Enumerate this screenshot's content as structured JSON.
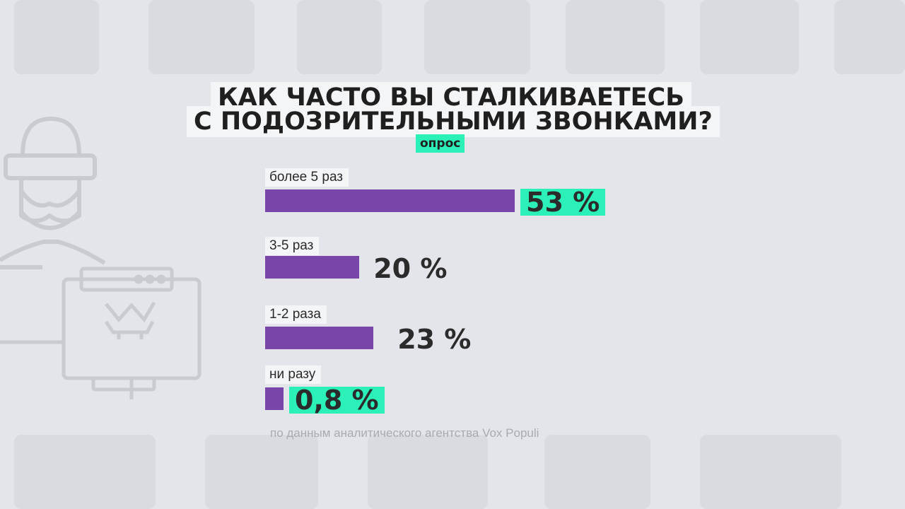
{
  "chart_data": {
    "type": "bar",
    "orientation": "horizontal",
    "title_lines": [
      "КАК ЧАСТО ВЫ СТАЛКИВАЕТЕСЬ",
      "С ПОДОЗРИТЕЛЬНЫМИ ЗВОНКАМИ?"
    ],
    "subtitle": "опрос",
    "categories": [
      "более 5 раз",
      "3-5 раз",
      "1-2 раза",
      "ни разу"
    ],
    "values": [
      53,
      20,
      23,
      0.8
    ],
    "value_labels": [
      "53 %",
      "20 %",
      "23 %",
      "0,8 %"
    ],
    "highlighted": [
      true,
      false,
      false,
      true
    ],
    "source": "по данным аналитического агентства Vox Populi",
    "xlim": [
      0,
      53
    ],
    "grid": false,
    "legend": "none"
  },
  "colors": {
    "background": "#e3e5eb",
    "bar": "#7a45a8",
    "highlight": "#2bf0b8",
    "label_box": "#f4f5f7",
    "text": "#1f1f1f",
    "source_text": "#a9abb1",
    "watermark": "#d5d7dd"
  },
  "icons": [
    "hacker-icon",
    "browser-window-icon",
    "monitor-icon"
  ]
}
